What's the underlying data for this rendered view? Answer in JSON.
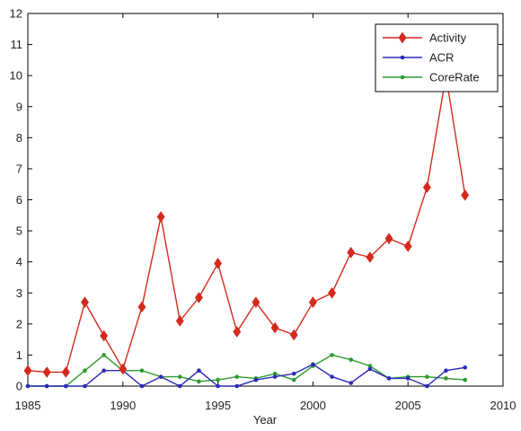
{
  "chart_data": {
    "type": "line",
    "title": "",
    "xlabel": "Year",
    "ylabel": "",
    "xlim": [
      1985,
      2010
    ],
    "ylim": [
      0,
      12
    ],
    "x_ticks": [
      1985,
      1990,
      1995,
      2000,
      2005,
      2010
    ],
    "y_ticks": [
      0,
      1,
      2,
      3,
      4,
      5,
      6,
      7,
      8,
      9,
      10,
      11,
      12
    ],
    "grid": false,
    "legend_position": "top-right",
    "x": [
      1985,
      1986,
      1987,
      1988,
      1989,
      1990,
      1991,
      1992,
      1993,
      1994,
      1995,
      1996,
      1997,
      1998,
      1999,
      2000,
      2001,
      2002,
      2003,
      2004,
      2005,
      2006,
      2007,
      2008
    ],
    "series": [
      {
        "name": "Activity",
        "color": "#d42a1e",
        "marker": "diamond",
        "values": [
          0.5,
          0.45,
          0.45,
          2.7,
          1.62,
          0.55,
          2.55,
          5.45,
          2.1,
          2.85,
          3.95,
          1.75,
          2.7,
          1.88,
          1.65,
          2.7,
          3.0,
          4.3,
          4.15,
          4.75,
          4.5,
          6.4,
          10.0,
          6.15
        ]
      },
      {
        "name": "ACR",
        "color": "#2a2ab8",
        "marker": "dot",
        "values": [
          0.0,
          0.0,
          0.0,
          0.0,
          0.5,
          0.5,
          0.0,
          0.3,
          0.0,
          0.5,
          0.0,
          0.0,
          0.2,
          0.3,
          0.4,
          0.7,
          0.3,
          0.1,
          0.55,
          0.25,
          0.25,
          0.0,
          0.5,
          0.6
        ]
      },
      {
        "name": "CoreRate",
        "color": "#2e9a2e",
        "marker": "dot",
        "values": [
          0.0,
          0.0,
          0.0,
          0.5,
          1.0,
          0.5,
          0.5,
          0.3,
          0.3,
          0.15,
          0.2,
          0.3,
          0.25,
          0.4,
          0.2,
          0.65,
          1.0,
          0.85,
          0.65,
          0.25,
          0.3,
          0.3,
          0.25,
          0.2
        ]
      }
    ]
  }
}
